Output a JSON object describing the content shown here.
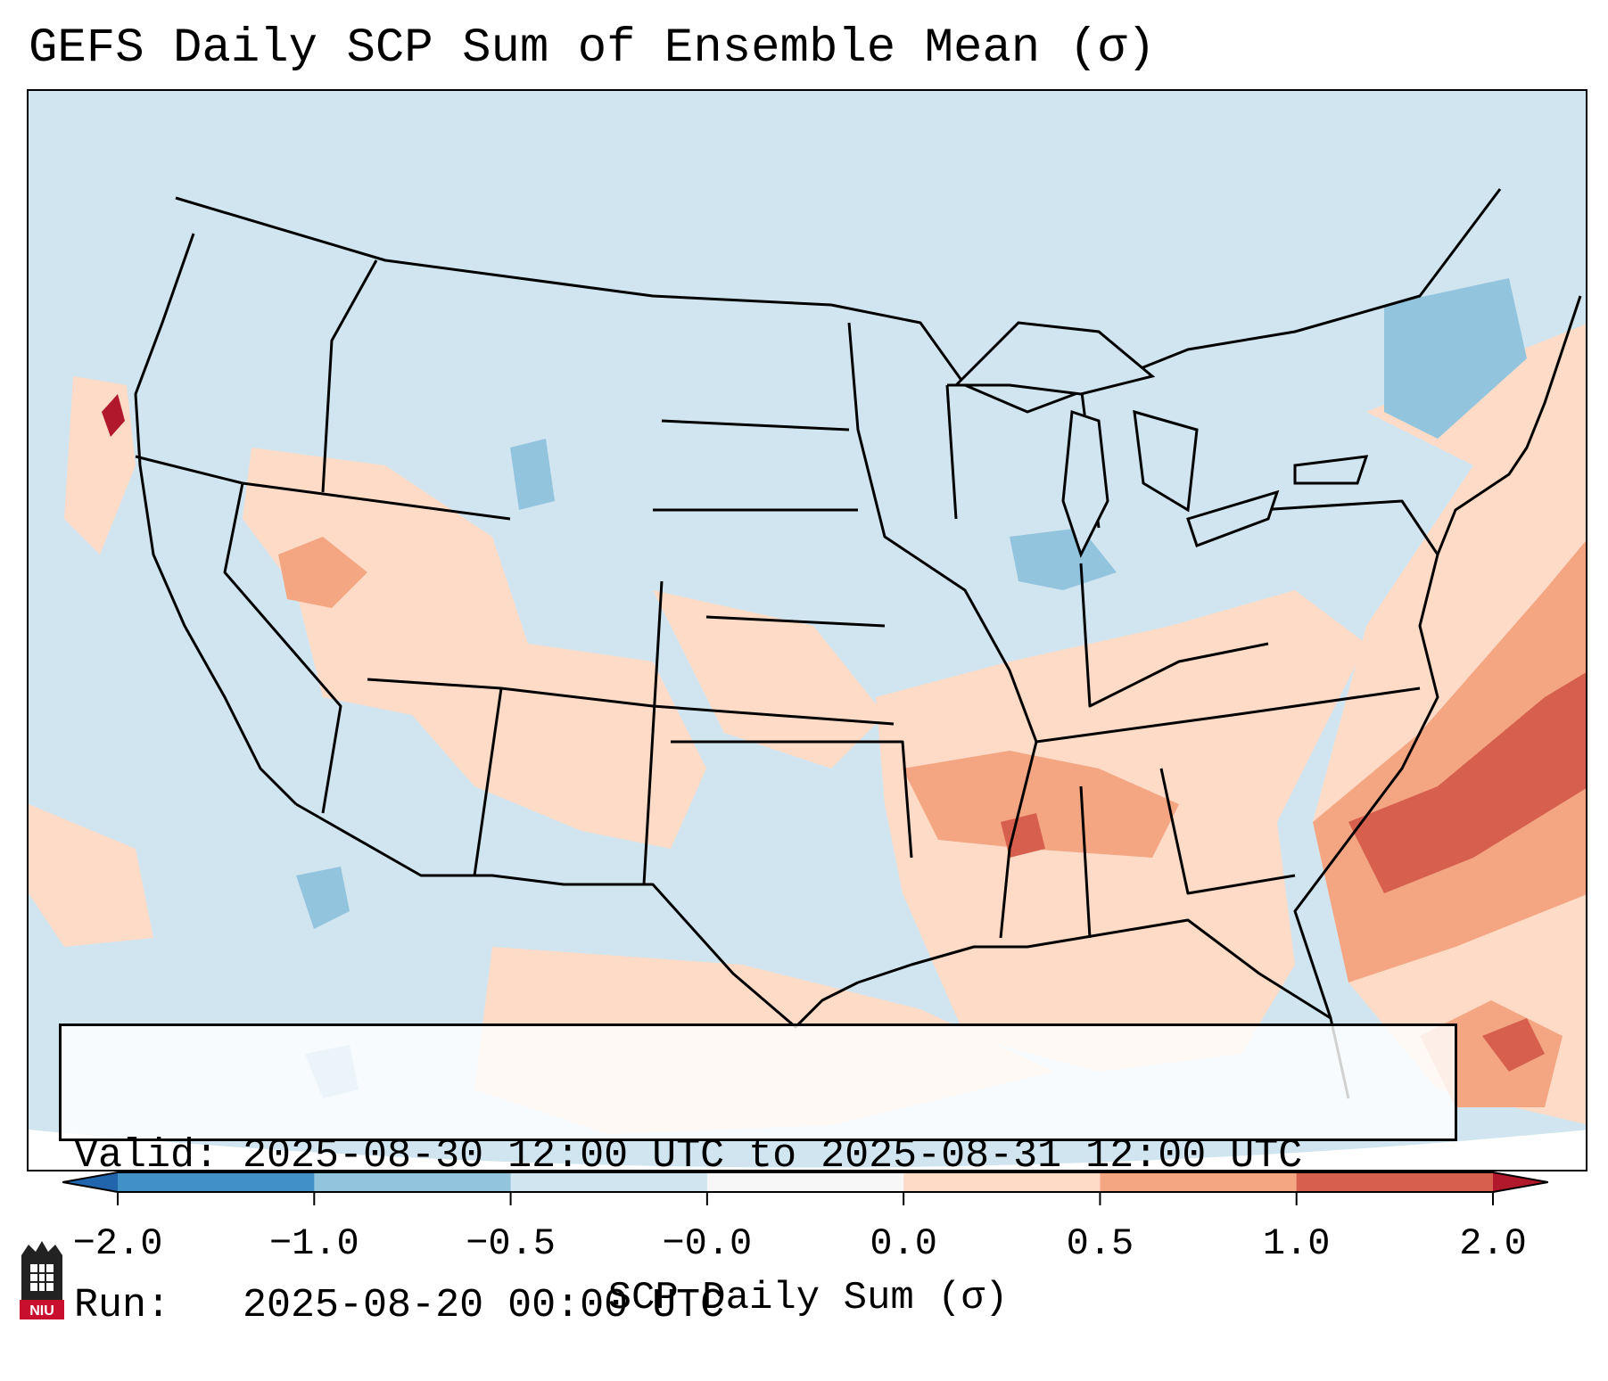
{
  "title": "GEFS Daily SCP Sum of Ensemble Mean (σ)",
  "info": {
    "valid_line": "Valid: 2025-08-30 12:00 UTC to 2025-08-31 12:00 UTC",
    "run_line": "Run:   2025-08-20 00:00 UTC"
  },
  "colorbar": {
    "title": "SCP Daily Sum (σ)",
    "tick_labels": [
      "−2.0",
      "−1.0",
      "−0.5",
      "−0.0",
      "0.0",
      "0.5",
      "1.0",
      "2.0"
    ],
    "colors": [
      "#4191c6",
      "#92c4de",
      "#d1e5f0",
      "#f7f7f7",
      "#fddbc7",
      "#f4a582",
      "#d6604d"
    ],
    "extend_low_color": "#2166ac",
    "extend_high_color": "#b2182b"
  },
  "map": {
    "background_color": "#d1e5f0",
    "outside_color": "#ffffff",
    "boundary_color": "#000000"
  },
  "logo": {
    "text": "NIU",
    "color": "#c8102e"
  }
}
